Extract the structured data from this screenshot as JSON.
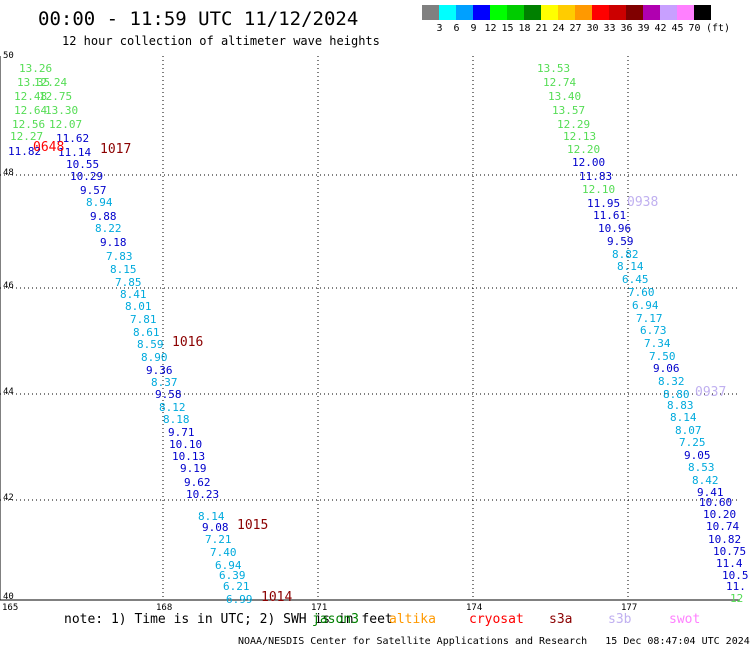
{
  "header": {
    "title": "00:00 - 11:59 UTC 11/12/2024",
    "subtitle": "12 hour collection of altimeter wave heights"
  },
  "legend": {
    "unit": "(ft)",
    "colors": [
      "#808080",
      "#00ffff",
      "#00a0ff",
      "#0000ff",
      "#00ff00",
      "#00cc00",
      "#008000",
      "#ffff00",
      "#ffcc00",
      "#ff9900",
      "#ff0000",
      "#cc0000",
      "#800000",
      "#b000b0",
      "#c8a0ff",
      "#ff80ff",
      "#000000"
    ],
    "labels": [
      "3",
      "6",
      "9",
      "12",
      "15",
      "18",
      "21",
      "24",
      "27",
      "30",
      "33",
      "36",
      "39",
      "42",
      "45",
      "70"
    ]
  },
  "axes": {
    "lon_labels": [
      "165",
      "168",
      "171",
      "174",
      "177"
    ],
    "lat_labels": [
      "50",
      "48",
      "46",
      "44",
      "42",
      "40"
    ]
  },
  "points_color_key": {
    "green": "#55dd55",
    "lightblue": "#00aadd",
    "blue": "#0000cc",
    "label_red": "#8b0000",
    "lilac": "#c0b0f0"
  },
  "track_west": [
    {
      "v": "13.26",
      "c": "#55dd55"
    },
    {
      "v": "13.35",
      "c": "#55dd55"
    },
    {
      "v": "12.24",
      "c": "#55dd55"
    },
    {
      "v": "12.48",
      "c": "#55dd55"
    },
    {
      "v": "12.75",
      "c": "#55dd55"
    },
    {
      "v": "12.64",
      "c": "#55dd55"
    },
    {
      "v": "13.30",
      "c": "#55dd55"
    },
    {
      "v": "12.56",
      "c": "#55dd55"
    },
    {
      "v": "12.07",
      "c": "#55dd55"
    },
    {
      "v": "12.27",
      "c": "#55dd55"
    },
    {
      "v": "11.62",
      "c": "#0000cc"
    },
    {
      "v": "11.82",
      "c": "#0000cc"
    },
    {
      "v": "11.14",
      "c": "#0000cc"
    },
    {
      "v": "10.55",
      "c": "#0000cc"
    },
    {
      "v": "10.29",
      "c": "#0000cc"
    },
    {
      "v": "9.57",
      "c": "#0000cc"
    },
    {
      "v": "8.94",
      "c": "#00aadd"
    },
    {
      "v": "9.88",
      "c": "#0000cc"
    },
    {
      "v": "8.22",
      "c": "#00aadd"
    },
    {
      "v": "9.18",
      "c": "#0000cc"
    },
    {
      "v": "7.83",
      "c": "#00aadd"
    },
    {
      "v": "8.15",
      "c": "#00aadd"
    },
    {
      "v": "7.85",
      "c": "#00aadd"
    },
    {
      "v": "8.41",
      "c": "#00aadd"
    },
    {
      "v": "8.01",
      "c": "#00aadd"
    },
    {
      "v": "7.81",
      "c": "#00aadd"
    },
    {
      "v": "8.61",
      "c": "#00aadd"
    },
    {
      "v": "8.59",
      "c": "#00aadd"
    },
    {
      "v": "8.90",
      "c": "#00aadd"
    },
    {
      "v": "9.36",
      "c": "#0000cc"
    },
    {
      "v": "8.37",
      "c": "#00aadd"
    },
    {
      "v": "9.58",
      "c": "#0000cc"
    },
    {
      "v": "8.12",
      "c": "#00aadd"
    },
    {
      "v": "8.18",
      "c": "#00aadd"
    },
    {
      "v": "9.71",
      "c": "#0000cc"
    },
    {
      "v": "10.10",
      "c": "#0000cc"
    },
    {
      "v": "10.13",
      "c": "#0000cc"
    },
    {
      "v": "9.19",
      "c": "#0000cc"
    },
    {
      "v": "9.62",
      "c": "#0000cc"
    },
    {
      "v": "10.23",
      "c": "#0000cc"
    },
    {
      "v": "8.14",
      "c": "#00aadd"
    },
    {
      "v": "9.08",
      "c": "#0000cc"
    },
    {
      "v": "7.21",
      "c": "#00aadd"
    },
    {
      "v": "7.40",
      "c": "#00aadd"
    },
    {
      "v": "6.94",
      "c": "#00aadd"
    },
    {
      "v": "6.39",
      "c": "#00aadd"
    },
    {
      "v": "6.21",
      "c": "#00aadd"
    },
    {
      "v": "6.99",
      "c": "#00aadd"
    }
  ],
  "track_east": [
    {
      "v": "13.53",
      "c": "#55dd55"
    },
    {
      "v": "12.74",
      "c": "#55dd55"
    },
    {
      "v": "13.40",
      "c": "#55dd55"
    },
    {
      "v": "13.57",
      "c": "#55dd55"
    },
    {
      "v": "12.29",
      "c": "#55dd55"
    },
    {
      "v": "12.13",
      "c": "#55dd55"
    },
    {
      "v": "12.20",
      "c": "#55dd55"
    },
    {
      "v": "12.00",
      "c": "#0000cc"
    },
    {
      "v": "11.83",
      "c": "#0000cc"
    },
    {
      "v": "12.10",
      "c": "#55dd55"
    },
    {
      "v": "11.95",
      "c": "#0000cc"
    },
    {
      "v": "11.61",
      "c": "#0000cc"
    },
    {
      "v": "10.96",
      "c": "#0000cc"
    },
    {
      "v": "9.59",
      "c": "#0000cc"
    },
    {
      "v": "8.82",
      "c": "#00aadd"
    },
    {
      "v": "8.14",
      "c": "#00aadd"
    },
    {
      "v": "6.45",
      "c": "#00aadd"
    },
    {
      "v": "7.60",
      "c": "#00aadd"
    },
    {
      "v": "6.94",
      "c": "#00aadd"
    },
    {
      "v": "7.17",
      "c": "#00aadd"
    },
    {
      "v": "6.73",
      "c": "#00aadd"
    },
    {
      "v": "7.34",
      "c": "#00aadd"
    },
    {
      "v": "7.50",
      "c": "#00aadd"
    },
    {
      "v": "9.06",
      "c": "#0000cc"
    },
    {
      "v": "8.32",
      "c": "#00aadd"
    },
    {
      "v": "8.80",
      "c": "#00aadd"
    },
    {
      "v": "8.83",
      "c": "#00aadd"
    },
    {
      "v": "8.14",
      "c": "#00aadd"
    },
    {
      "v": "8.07",
      "c": "#00aadd"
    },
    {
      "v": "7.25",
      "c": "#00aadd"
    },
    {
      "v": "9.05",
      "c": "#0000cc"
    },
    {
      "v": "8.53",
      "c": "#00aadd"
    },
    {
      "v": "8.42",
      "c": "#00aadd"
    },
    {
      "v": "9.41",
      "c": "#0000cc"
    },
    {
      "v": "10.60",
      "c": "#0000cc"
    },
    {
      "v": "10.20",
      "c": "#0000cc"
    },
    {
      "v": "10.74",
      "c": "#0000cc"
    },
    {
      "v": "10.82",
      "c": "#0000cc"
    },
    {
      "v": "10.75",
      "c": "#0000cc"
    },
    {
      "v": "11.4",
      "c": "#0000cc"
    },
    {
      "v": "10.5",
      "c": "#0000cc"
    },
    {
      "v": "11.",
      "c": "#0000cc"
    },
    {
      "v": "12",
      "c": "#55dd55"
    }
  ],
  "pass_labels": [
    {
      "t": "0648",
      "c": "#ff0000"
    },
    {
      "t": "1017",
      "c": "#8b0000"
    },
    {
      "t": "1016",
      "c": "#8b0000"
    },
    {
      "t": "1015",
      "c": "#8b0000"
    },
    {
      "t": "1014",
      "c": "#8b0000"
    },
    {
      "t": "0938",
      "c": "#c0b0f0"
    },
    {
      "t": "0937",
      "c": "#c0b0f0"
    }
  ],
  "footer": {
    "note": "note: 1) Time is in UTC; 2) SWH is in feet",
    "satellites": [
      {
        "name": "jason3",
        "color": "#008000"
      },
      {
        "name": "altika",
        "color": "#ff9900"
      },
      {
        "name": "cryosat",
        "color": "#ff0000"
      },
      {
        "name": "s3a",
        "color": "#8b0000"
      },
      {
        "name": "s3b",
        "color": "#c0b0f0"
      },
      {
        "name": "swot",
        "color": "#ff80ff"
      }
    ],
    "credit": "NOAA/NESDIS Center for Satellite Applications and Research",
    "timestamp": "15 Dec 08:47:04 UTC 2024"
  }
}
